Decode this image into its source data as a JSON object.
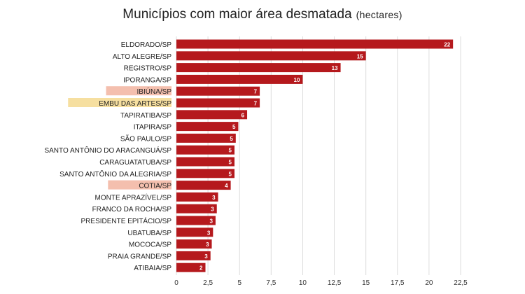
{
  "chart_data": {
    "type": "bar",
    "orientation": "horizontal",
    "title": "Municípios com maior área desmatada",
    "subtitle": "(hectares)",
    "categories": [
      "ELDORADO/SP",
      "ALTO ALEGRE/SP",
      "REGISTRO/SP",
      "IPORANGA/SP",
      "IBIÚNA/SP",
      "EMBU DAS ARTES/SP",
      "TAPIRATIBA/SP",
      "ITAPIRA/SP",
      "SÃO PAULO/SP",
      "SANTO ANTÔNIO DO ARACANGUÁ/SP",
      "CARAGUATATUBA/SP",
      "SANTO ANTÔNIO DA ALEGRIA/SP",
      "COTIA/SP",
      "MONTE APRAZÍVEL/SP",
      "FRANCO DA ROCHA/SP",
      "PRESIDENTE EPITÁCIO/SP",
      "UBATUBA/SP",
      "MOCOCA/SP",
      "PRAIA GRANDE/SP",
      "ATIBAIA/SP"
    ],
    "values": [
      21.9,
      15.0,
      13.0,
      10.0,
      6.6,
      6.6,
      5.6,
      4.9,
      4.7,
      4.6,
      4.6,
      4.6,
      4.3,
      3.3,
      3.2,
      3.1,
      2.9,
      2.8,
      2.7,
      2.3
    ],
    "data_labels": [
      "22",
      "15",
      "13",
      "10",
      "7",
      "7",
      "6",
      "5",
      "5",
      "5",
      "5",
      "5",
      "4",
      "3",
      "3",
      "3",
      "3",
      "3",
      "3",
      "2"
    ],
    "highlighted_categories": [
      {
        "category": "IBIÚNA/SP",
        "color": "#f4bfae"
      },
      {
        "category": "EMBU DAS ARTES/SP",
        "color": "#f6dfa0"
      },
      {
        "category": "COTIA/SP",
        "color": "#f4bfae"
      }
    ],
    "xlim": [
      0,
      22.5
    ],
    "xticks": [
      "0",
      "2,5",
      "5",
      "7,5",
      "10",
      "12,5",
      "15",
      "17,5",
      "20",
      "22,5"
    ],
    "xtick_values": [
      0,
      2.5,
      5,
      7.5,
      10,
      12.5,
      15,
      17.5,
      20,
      22.5
    ],
    "grid": "vertical",
    "xlabel": "",
    "ylabel": "",
    "bar_color": "#b5191d",
    "grid_color": "#dcdcdc",
    "label_color": "#ffffff"
  }
}
